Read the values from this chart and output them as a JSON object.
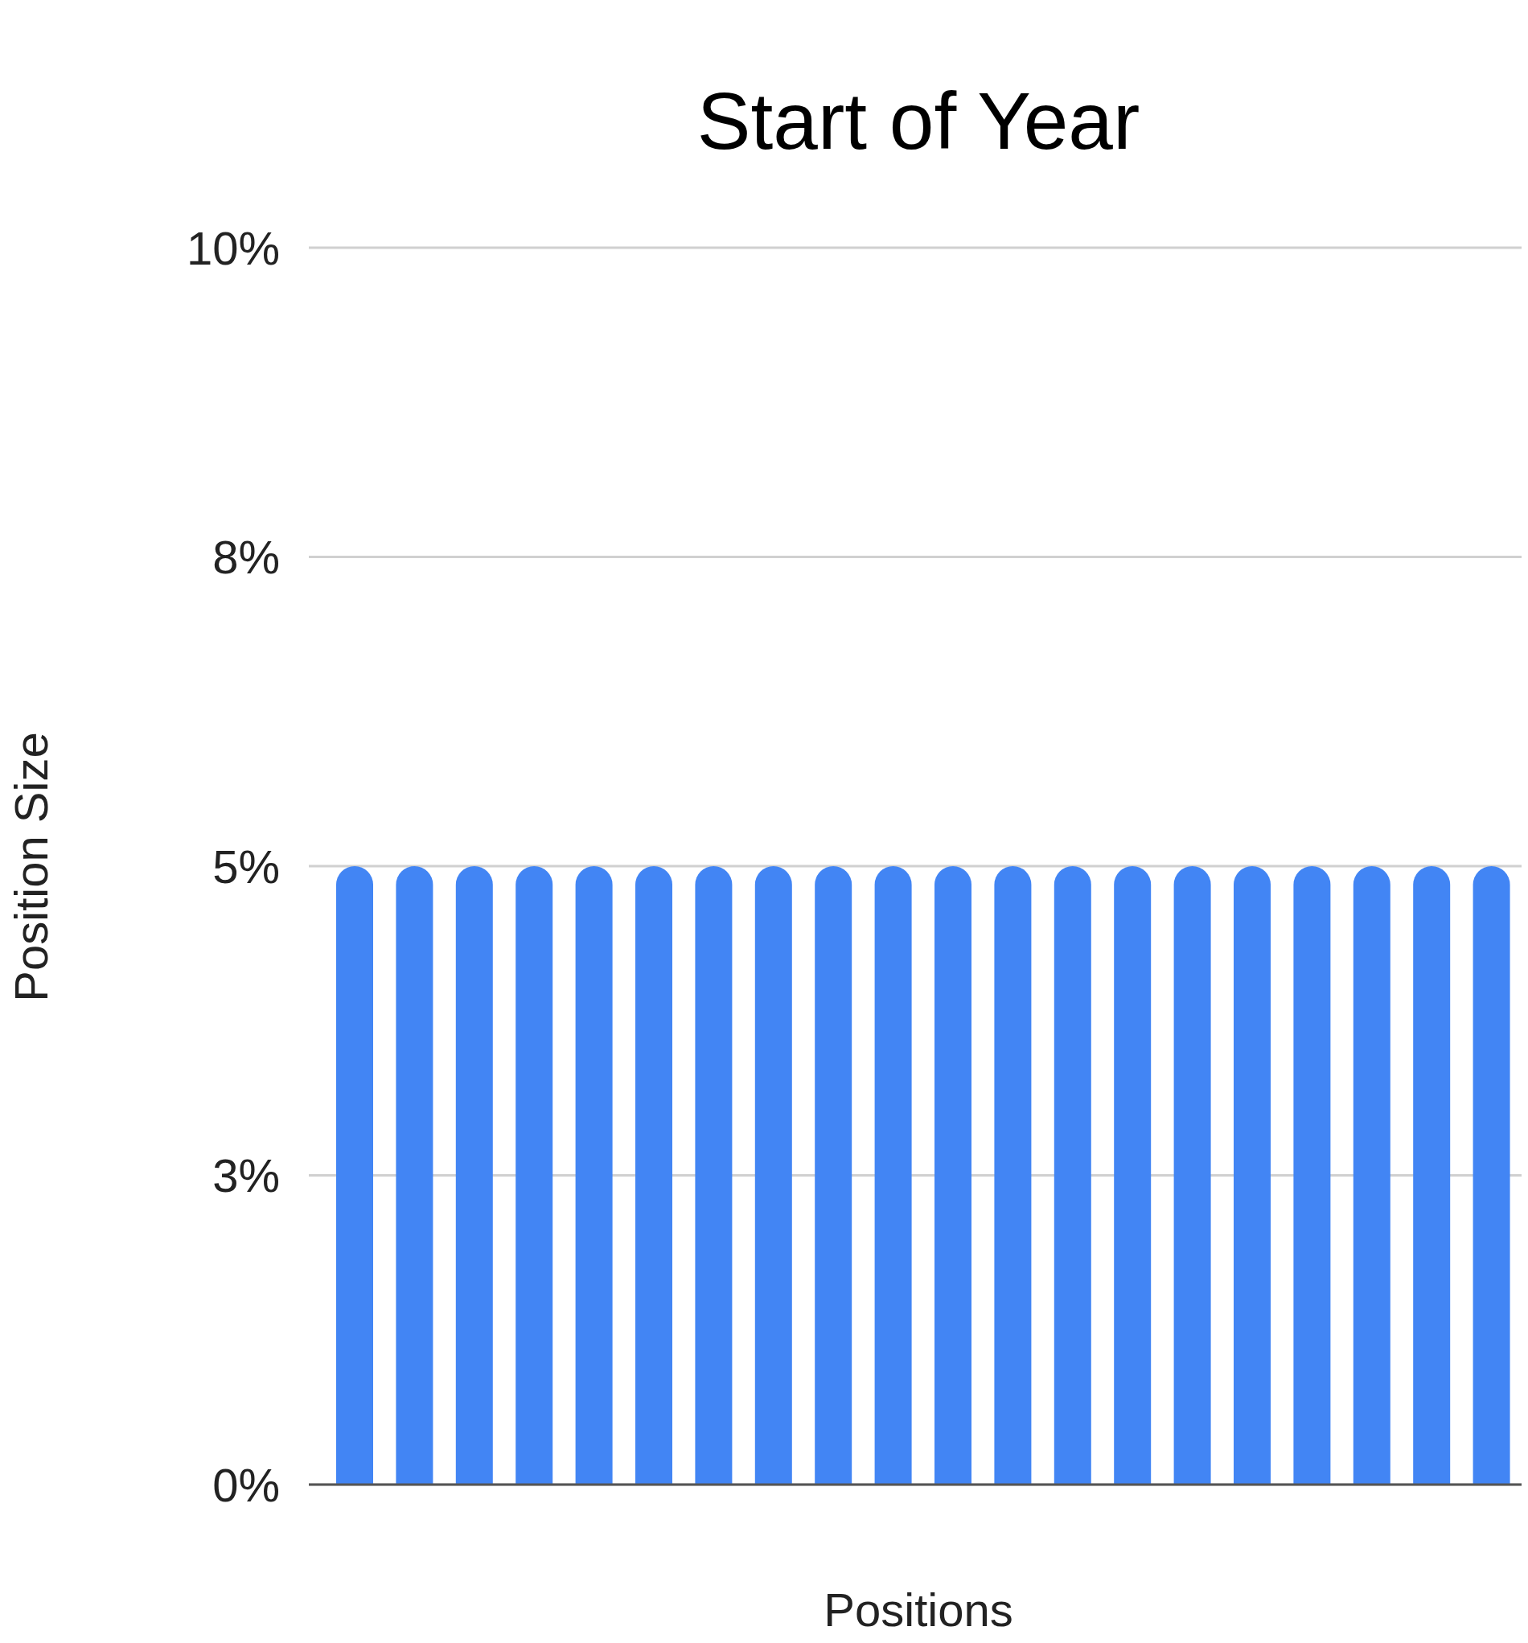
{
  "chart_data": {
    "type": "bar",
    "title": "Start of Year",
    "xlabel": "Positions",
    "ylabel": "Position Size",
    "categories": [
      null,
      null,
      null,
      null,
      null,
      null,
      null,
      null,
      null,
      null,
      null,
      null,
      null,
      null,
      null,
      null,
      null,
      null,
      null,
      null
    ],
    "values": [
      5,
      5,
      5,
      5,
      5,
      5,
      5,
      5,
      5,
      5,
      5,
      5,
      5,
      5,
      5,
      5,
      5,
      5,
      5,
      5
    ],
    "color": "#4285f4",
    "ylim": [
      0,
      10
    ],
    "yticks": [
      {
        "value": 0,
        "label": "0%"
      },
      {
        "value": 2.5,
        "label": "3%"
      },
      {
        "value": 5,
        "label": "5%"
      },
      {
        "value": 7.5,
        "label": "8%"
      },
      {
        "value": 10,
        "label": "10%"
      }
    ],
    "grid": "y"
  }
}
